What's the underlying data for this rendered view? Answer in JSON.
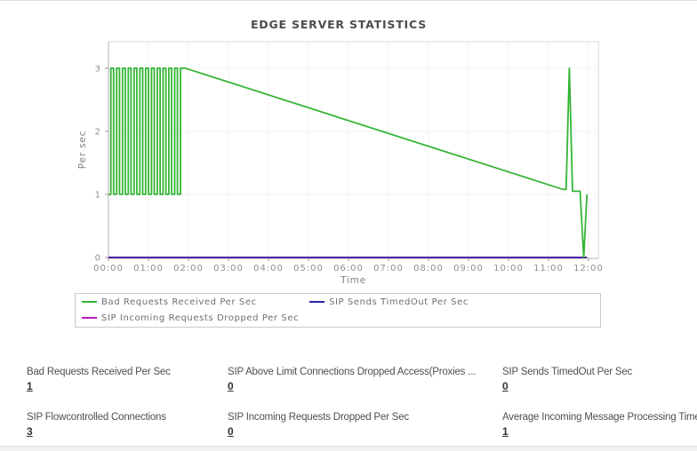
{
  "page": {
    "title": "EDGE SERVER STATISTICS"
  },
  "chart_data": {
    "type": "line",
    "title": "EDGE SERVER STATISTICS",
    "xlabel": "Time",
    "ylabel": "Per sec",
    "x_tick_labels": [
      "00:00",
      "01:00",
      "02:00",
      "03:00",
      "04:00",
      "05:00",
      "06:00",
      "07:00",
      "08:00",
      "09:00",
      "10:00",
      "11:00",
      "12:00"
    ],
    "y_tick_labels": [
      "0",
      "1",
      "2",
      "3"
    ],
    "xlim_hours": [
      0,
      12.25
    ],
    "ylim": [
      0,
      3.42
    ],
    "grid": true,
    "legend_position": "bottom",
    "series": [
      {
        "name": "Bad Requests Received Per Sec",
        "color": "#35b535",
        "points": [
          [
            0,
            1
          ],
          [
            0.06,
            1
          ],
          [
            0.06,
            3
          ],
          [
            0.13,
            3
          ],
          [
            0.13,
            1
          ],
          [
            0.205,
            1
          ],
          [
            0.205,
            3
          ],
          [
            0.275,
            3
          ],
          [
            0.275,
            1
          ],
          [
            0.35,
            1
          ],
          [
            0.35,
            3
          ],
          [
            0.42,
            3
          ],
          [
            0.42,
            1
          ],
          [
            0.495,
            1
          ],
          [
            0.495,
            3
          ],
          [
            0.565,
            3
          ],
          [
            0.565,
            1
          ],
          [
            0.64,
            1
          ],
          [
            0.64,
            3
          ],
          [
            0.71,
            3
          ],
          [
            0.71,
            1
          ],
          [
            0.785,
            1
          ],
          [
            0.785,
            3
          ],
          [
            0.855,
            3
          ],
          [
            0.855,
            1
          ],
          [
            0.93,
            1
          ],
          [
            0.93,
            3
          ],
          [
            1.0,
            3
          ],
          [
            1.0,
            1
          ],
          [
            1.075,
            1
          ],
          [
            1.075,
            3
          ],
          [
            1.145,
            3
          ],
          [
            1.145,
            1
          ],
          [
            1.22,
            1
          ],
          [
            1.22,
            3
          ],
          [
            1.29,
            3
          ],
          [
            1.29,
            1
          ],
          [
            1.365,
            1
          ],
          [
            1.365,
            3
          ],
          [
            1.435,
            3
          ],
          [
            1.435,
            1
          ],
          [
            1.51,
            1
          ],
          [
            1.51,
            3
          ],
          [
            1.58,
            3
          ],
          [
            1.58,
            1
          ],
          [
            1.655,
            1
          ],
          [
            1.655,
            3
          ],
          [
            1.725,
            3
          ],
          [
            1.725,
            1
          ],
          [
            1.8,
            1
          ],
          [
            1.8,
            3
          ],
          [
            1.92,
            3
          ],
          [
            11.36,
            1.08
          ],
          [
            11.44,
            1.08
          ],
          [
            11.52,
            3
          ],
          [
            11.6,
            1.05
          ],
          [
            11.79,
            1.05
          ],
          [
            11.88,
            0
          ],
          [
            11.96,
            1
          ]
        ]
      },
      {
        "name": "SIP Sends TimedOut Per Sec",
        "color": "#2727a3",
        "points": [
          [
            0,
            0
          ],
          [
            11.96,
            0
          ]
        ]
      },
      {
        "name": "SIP Incoming Requests Dropped Per Sec",
        "color": "#b81cb8",
        "points": [
          [
            0,
            0
          ],
          [
            11.96,
            0
          ]
        ]
      }
    ]
  },
  "stats": {
    "rows": [
      {
        "items": [
          {
            "label": "Bad Requests Received Per Sec",
            "value": "1"
          },
          {
            "label": "SIP Above Limit Connections Dropped Access(Proxies ...",
            "value": "0"
          },
          {
            "label": "SIP Sends TimedOut Per Sec",
            "value": "0"
          }
        ]
      },
      {
        "items": [
          {
            "label": "SIP Flowcontrolled Connections",
            "value": "3"
          },
          {
            "label": "SIP Incoming Requests Dropped Per Sec",
            "value": "0"
          },
          {
            "label": "Average Incoming Message Processing Time",
            "value": "1"
          }
        ]
      }
    ]
  }
}
